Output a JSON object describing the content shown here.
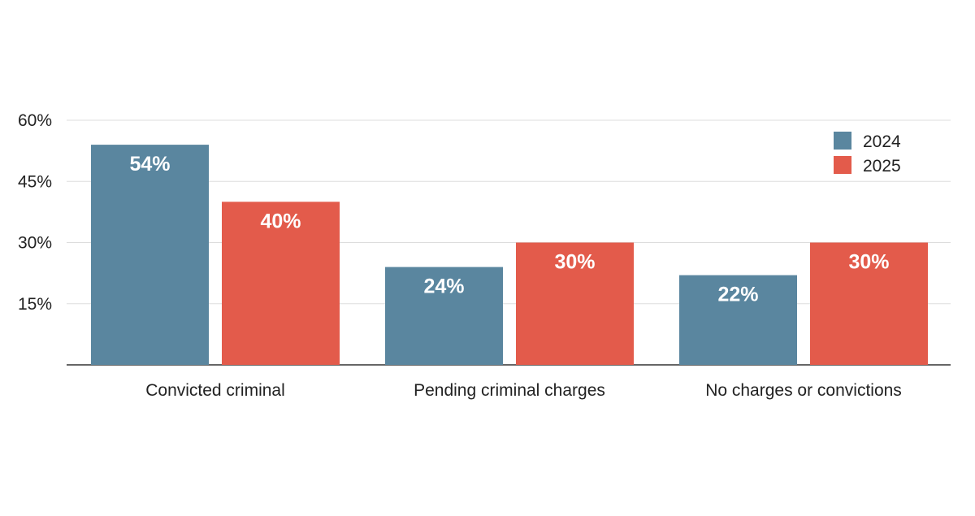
{
  "chart_data": {
    "type": "bar",
    "categories": [
      "Convicted criminal",
      "Pending criminal charges",
      "No charges or convictions"
    ],
    "series": [
      {
        "name": "2024",
        "values": [
          54,
          24,
          22
        ],
        "labels": [
          "54%",
          "24%",
          "22%"
        ]
      },
      {
        "name": "2025",
        "values": [
          40,
          30,
          30
        ],
        "labels": [
          "40%",
          "30%",
          "30%"
        ]
      }
    ],
    "ylim": [
      0,
      60
    ],
    "yticks": [
      15,
      30,
      45,
      60
    ],
    "ytick_labels": [
      "15%",
      "30%",
      "45%",
      "60%"
    ],
    "grid": true,
    "legend_position": "top-right",
    "colors": {
      "2024": "#5a869f",
      "2025": "#e35b4b",
      "grid": "#dddddd",
      "axis": "#333333"
    }
  }
}
